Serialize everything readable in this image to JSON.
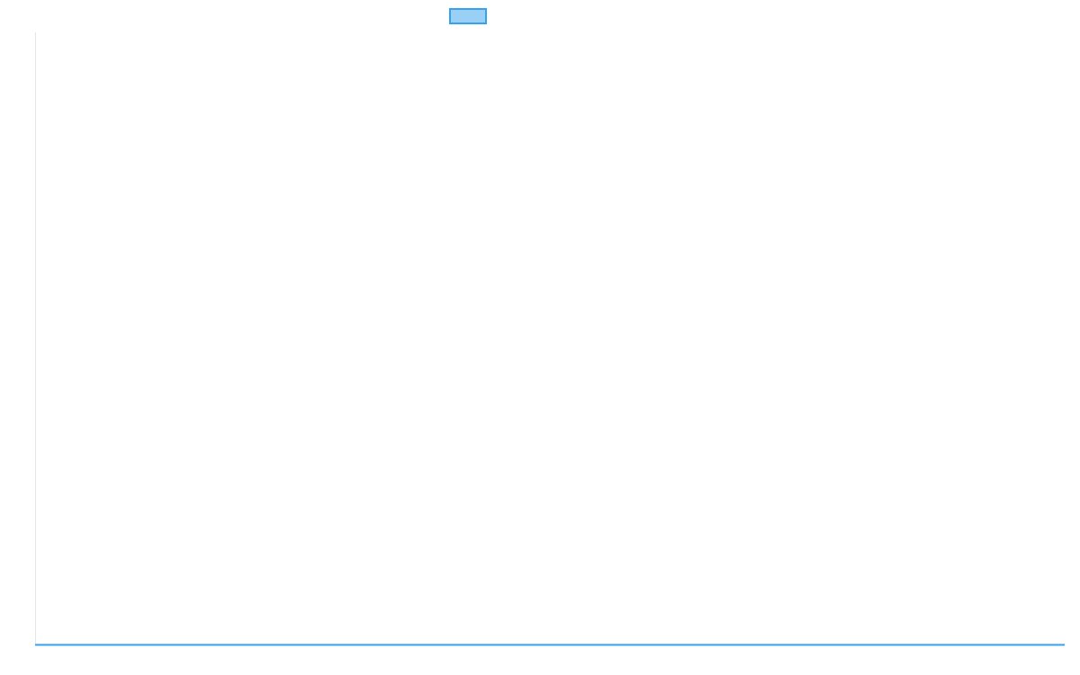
{
  "chart_data": {
    "type": "line",
    "title": "",
    "xlabel": "",
    "ylabel": "",
    "categories": [],
    "series": [
      {
        "values": [],
        "color": "#36a2eb",
        "fill": "#9ad0f5"
      }
    ],
    "legend": {
      "placement": "top",
      "labels": [
        ""
      ]
    },
    "grid": false,
    "axis_color": "#e5e5e5"
  }
}
